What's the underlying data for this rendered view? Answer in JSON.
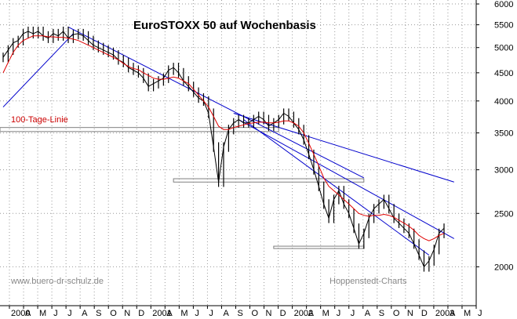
{
  "chart_data": {
    "type": "line",
    "title": "EuroSTOXX 50 auf Wochenbasis",
    "y_scale": "log",
    "ylim": [
      1700,
      6100
    ],
    "y_ticks": [
      2000,
      2500,
      3000,
      3500,
      4000,
      4500,
      5000,
      5500,
      6000
    ],
    "x_labels": [
      "2000",
      "A",
      "M",
      "J",
      "J",
      "A",
      "S",
      "O",
      "N",
      "D",
      "2001",
      "A",
      "M",
      "J",
      "J",
      "A",
      "S",
      "O",
      "N",
      "D",
      "2002",
      "A",
      "M",
      "J",
      "J",
      "A",
      "S",
      "O",
      "N",
      "D",
      "2003",
      "A",
      "M",
      "J"
    ],
    "colors": {
      "price": "#000000",
      "moving_average": "#e00000",
      "trendline": "#0000cc",
      "band": "#808080",
      "annotation": "#888888",
      "ma_label": "#cc0000"
    },
    "series": [
      {
        "role": "price",
        "values": [
          4800,
          4950,
          5100,
          5150,
          5300,
          5350,
          5300,
          5350,
          5250,
          5200,
          5300,
          5250,
          5350,
          5200,
          5280,
          5300,
          5250,
          5150,
          5050,
          5000,
          4950,
          4900,
          4850,
          4750,
          4700,
          4600,
          4550,
          4500,
          4400,
          4250,
          4300,
          4350,
          4400,
          4550,
          4600,
          4500,
          4350,
          4250,
          4150,
          4050,
          4000,
          3800,
          3300,
          2850,
          3300,
          3550,
          3650,
          3700,
          3650,
          3650,
          3700,
          3750,
          3700,
          3600,
          3650,
          3700,
          3800,
          3750,
          3650,
          3550,
          3400,
          3200,
          3000,
          2800,
          2600,
          2450,
          2650,
          2750,
          2600,
          2500,
          2350,
          2200,
          2300,
          2450,
          2550,
          2600,
          2650,
          2550,
          2450,
          2400,
          2350,
          2300,
          2200,
          2100,
          2000,
          2050,
          2150,
          2300,
          2350
        ]
      },
      {
        "role": "moving_average",
        "name": "100-Tage-Linie",
        "values": [
          4500,
          4700,
          4900,
          5050,
          5150,
          5200,
          5250,
          5250,
          5250,
          5230,
          5230,
          5220,
          5220,
          5200,
          5180,
          5150,
          5100,
          5050,
          5000,
          4950,
          4900,
          4850,
          4800,
          4750,
          4680,
          4620,
          4580,
          4560,
          4500,
          4450,
          4400,
          4380,
          4380,
          4400,
          4420,
          4400,
          4350,
          4300,
          4200,
          4100,
          4000,
          3900,
          3750,
          3600,
          3550,
          3550,
          3580,
          3600,
          3620,
          3640,
          3650,
          3660,
          3660,
          3650,
          3650,
          3660,
          3680,
          3680,
          3650,
          3600,
          3500,
          3350,
          3200,
          3050,
          2900,
          2800,
          2750,
          2700,
          2650,
          2600,
          2550,
          2500,
          2480,
          2470,
          2480,
          2480,
          2490,
          2480,
          2460,
          2430,
          2400,
          2370,
          2330,
          2280,
          2250,
          2230,
          2250,
          2280,
          2300
        ]
      }
    ],
    "trendlines": [
      {
        "from": [
          0,
          3900
        ],
        "to": [
          14,
          5300
        ]
      },
      {
        "from": [
          13,
          5450
        ],
        "to": [
          72,
          2900
        ]
      },
      {
        "from": [
          46,
          3800
        ],
        "to": [
          90,
          2850
        ]
      },
      {
        "from": [
          47,
          3700
        ],
        "to": [
          90,
          2250
        ]
      },
      {
        "from": [
          48,
          3700
        ],
        "to": [
          85,
          2100
        ]
      }
    ],
    "bands": [
      {
        "from": 0,
        "to": 55,
        "lower": 3520,
        "upper": 3580
      },
      {
        "from": 34,
        "to": 72,
        "lower": 2850,
        "upper": 2890
      },
      {
        "from": 54,
        "to": 72,
        "lower": 2170,
        "upper": 2180
      }
    ],
    "annotations": {
      "ma_label": "100-Tage-Linie",
      "website": "www.buero-dr-schulz.de",
      "source": "Hoppenstedt-Charts"
    }
  }
}
